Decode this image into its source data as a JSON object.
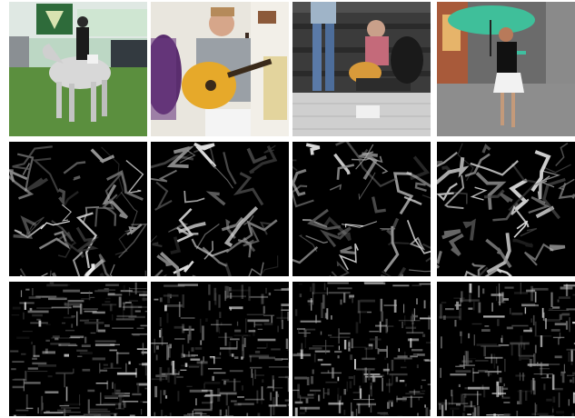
{
  "figure": {
    "rows": [
      {
        "kind": "photo",
        "panels": [
          {
            "subject": "rider-on-white-horse",
            "colors": {
              "sky": "#bcd7c4",
              "grass": "#5b8f3e",
              "horse": "#d8d8d8",
              "rider": "#1b1b1b"
            }
          },
          {
            "subject": "man-playing-acoustic-guitar",
            "colors": {
              "wall": "#e9e6de",
              "guitar": "#e6a92a",
              "shirt": "#9aa0a6",
              "chair": "#5a2d6e"
            }
          },
          {
            "subject": "street-guitarist-on-pavement",
            "colors": {
              "wall": "#3b3b3b",
              "ground": "#cfcfcf",
              "jeans": "#5a7aa8",
              "shirt": "#c46a7a"
            }
          },
          {
            "subject": "woman-with-umbrella-on-street",
            "colors": {
              "street": "#6b6b6b",
              "umbrella": "#3fbf9a",
              "dress": "#111111",
              "shops": "#a85a3a"
            }
          }
        ]
      },
      {
        "kind": "feature-map-coarse",
        "panels": [
          {
            "seed": 11
          },
          {
            "seed": 23
          },
          {
            "seed": 37
          },
          {
            "seed": 51
          }
        ]
      },
      {
        "kind": "feature-map-fine",
        "panels": [
          {
            "seed": 67
          },
          {
            "seed": 79
          },
          {
            "seed": 83
          },
          {
            "seed": 97
          }
        ]
      }
    ]
  }
}
